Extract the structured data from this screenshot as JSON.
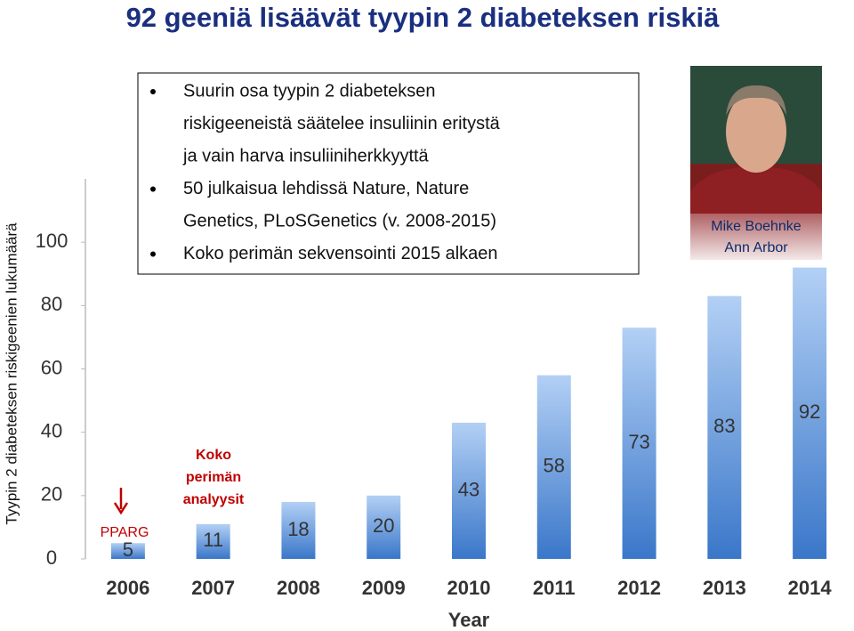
{
  "chart_data": {
    "type": "bar",
    "title": "92 geeniä lisäävät tyypin 2 diabeteksen riskiä",
    "y_label": "Tyypin 2 diabeteksen riskigeenien lukumäärä",
    "x_label": "Year",
    "categories": [
      "2006",
      "2007",
      "2008",
      "2009",
      "2010",
      "2011",
      "2012",
      "2013",
      "2014"
    ],
    "values": [
      5,
      11,
      18,
      20,
      43,
      58,
      73,
      83,
      92
    ],
    "ylim": [
      0,
      120
    ],
    "yticks": [
      0,
      20,
      40,
      60,
      80,
      100
    ],
    "annotations": [
      "PPARG",
      [
        "Koko",
        "perimän",
        "analyysit"
      ]
    ]
  },
  "bullets": [
    [
      "Suurin osa tyypin 2 diabeteksen",
      "riskigeeneistä säätelee insuliinin eritystä",
      "ja vain harva insuliiniherkkyyttä"
    ],
    [
      "50 julkaisua lehdissä Nature, Nature",
      "Genetics, PLoSGenetics (v. 2008-2015)"
    ],
    [
      "Koko perimän sekvensointi 2015 alkaen"
    ]
  ],
  "photo_caption": [
    "Mike Boehnke",
    "Ann Arbor"
  ]
}
